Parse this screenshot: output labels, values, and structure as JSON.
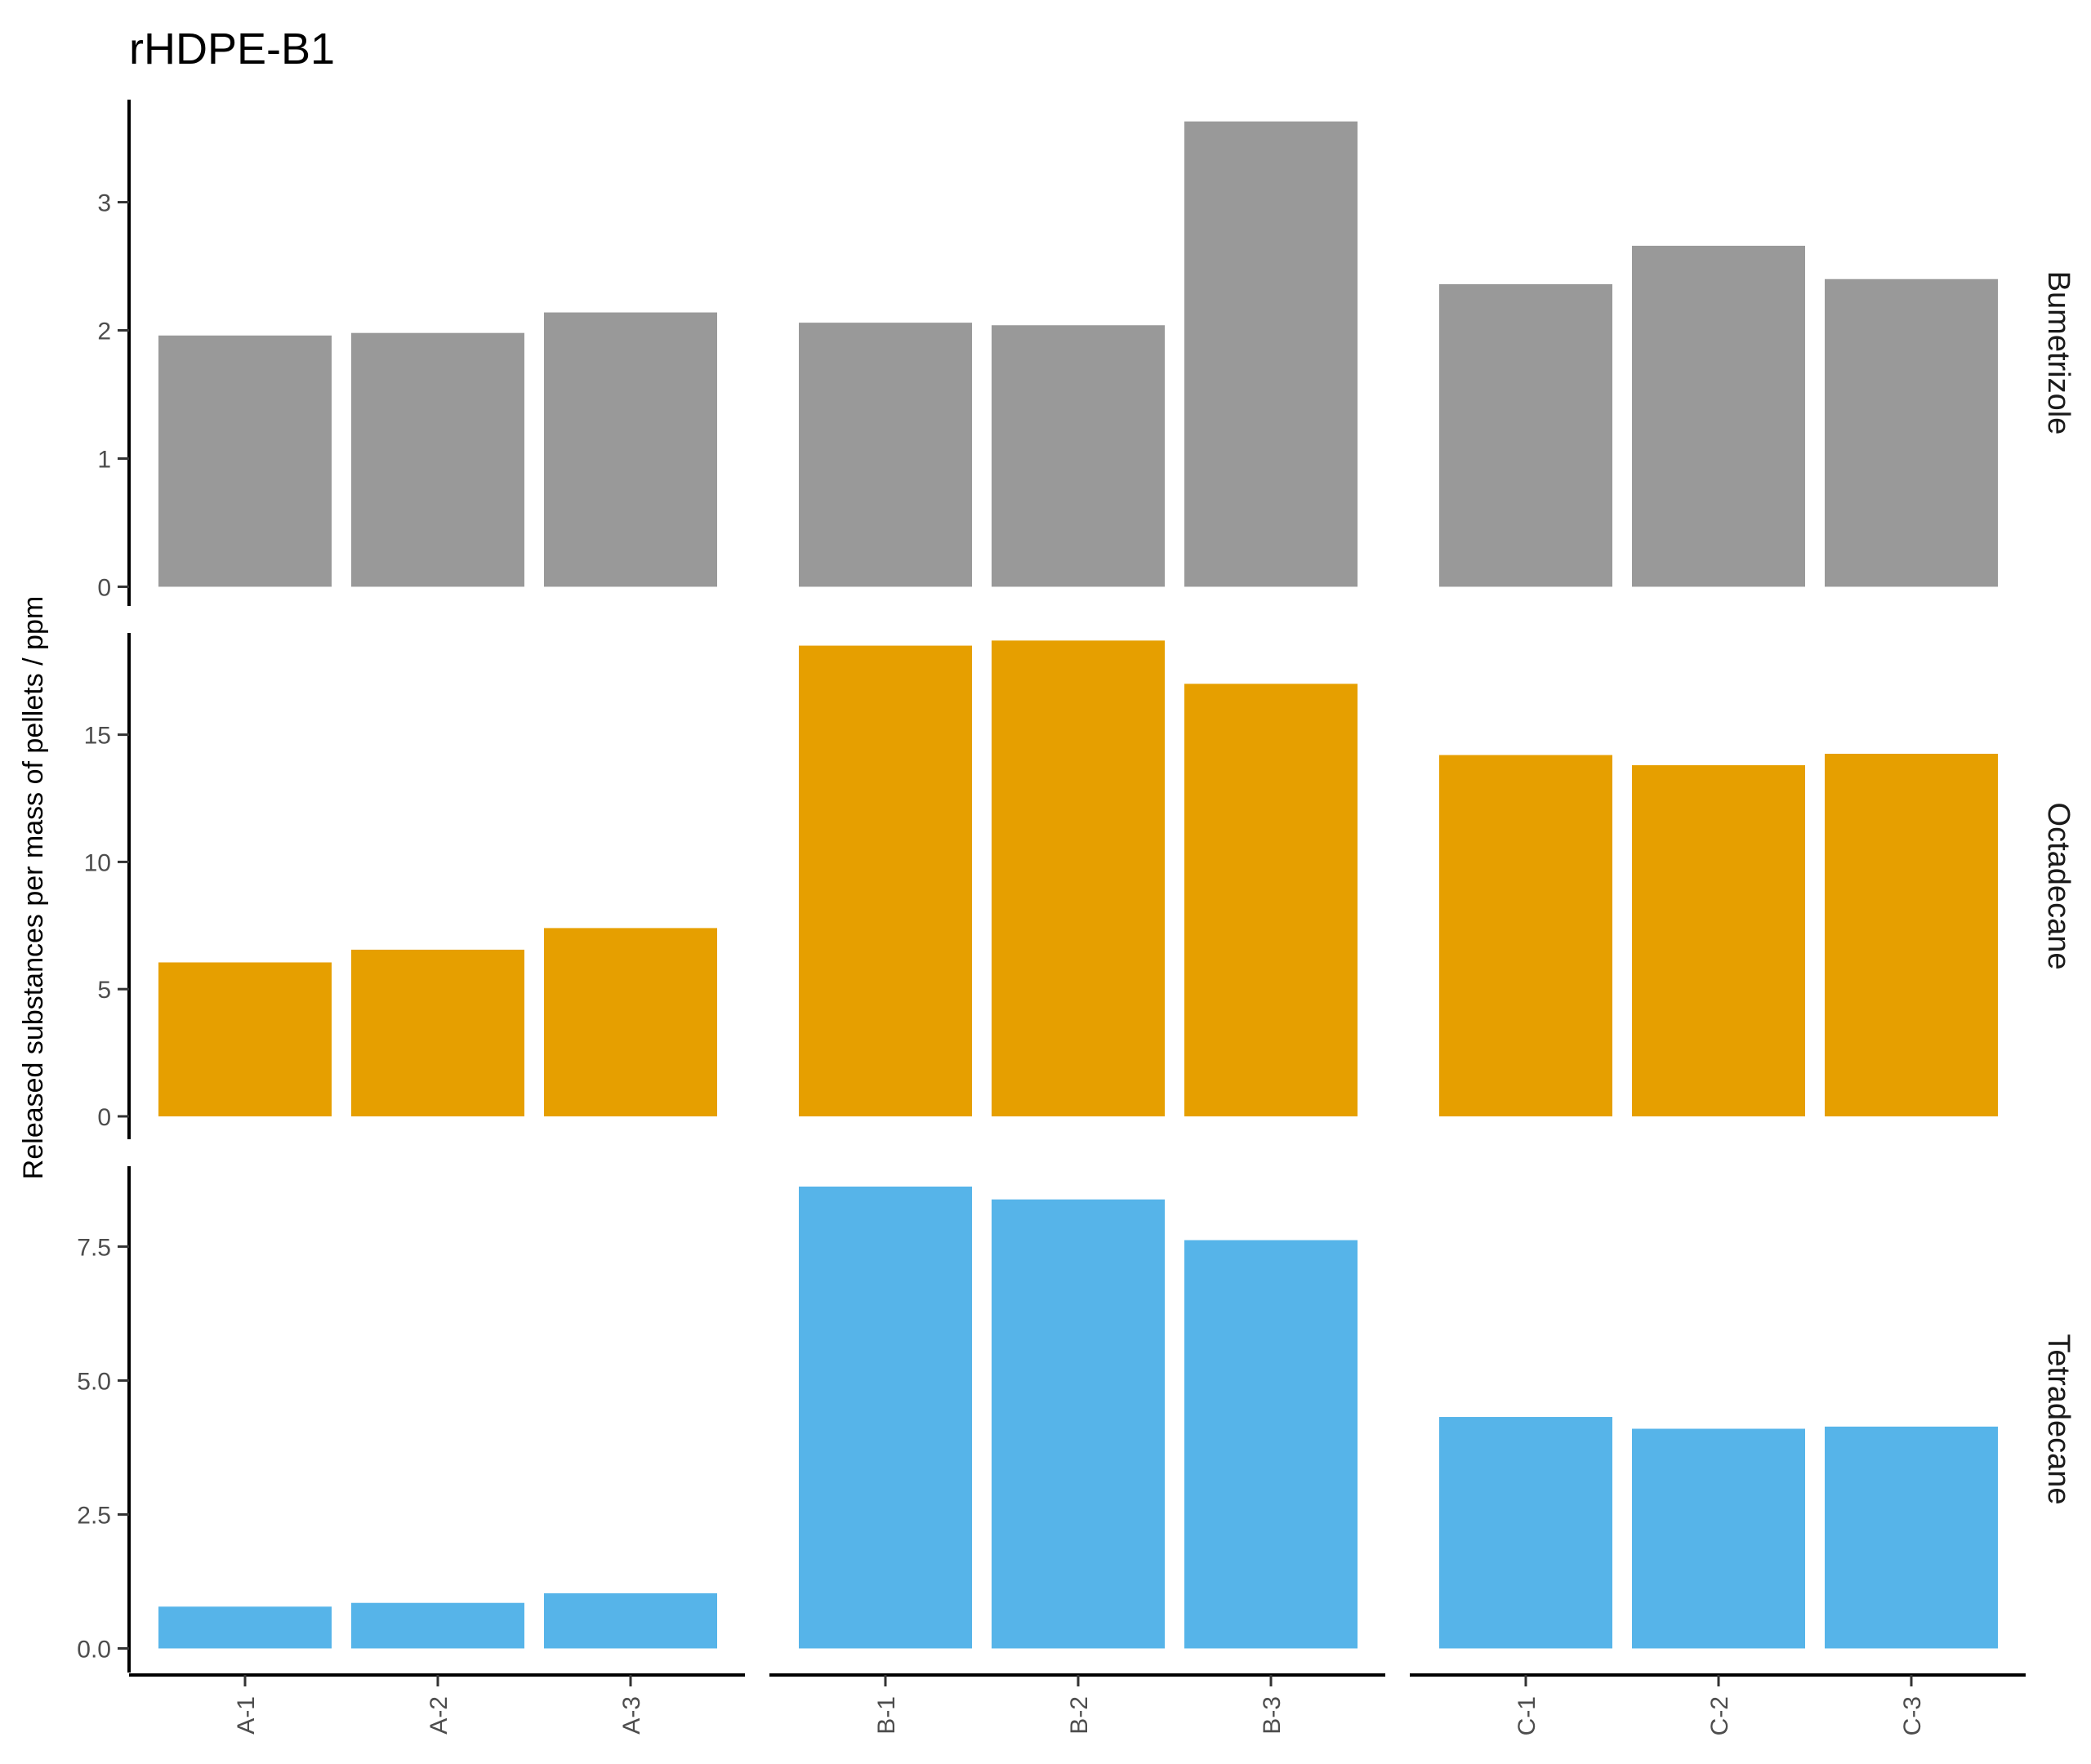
{
  "chart_data": {
    "type": "bar",
    "title": "rHDPE-B1",
    "ylabel": "Released substances per mass of pellets / ppm",
    "xlabel": "",
    "groups": [
      {
        "name": "A",
        "categories": [
          "A-1",
          "A-2",
          "A-3"
        ]
      },
      {
        "name": "B",
        "categories": [
          "B-1",
          "B-2",
          "B-3"
        ]
      },
      {
        "name": "C",
        "categories": [
          "C-1",
          "C-2",
          "C-3"
        ]
      }
    ],
    "facets": [
      {
        "name": "Bumetrizole",
        "color": "#999999",
        "ylim": [
          -0.15,
          3.8
        ],
        "ticks": [
          0,
          1,
          2,
          3
        ],
        "tick_labels": [
          "0",
          "1",
          "2",
          "3"
        ],
        "values": [
          1.96,
          1.98,
          2.14,
          2.06,
          2.04,
          3.63,
          2.36,
          2.66,
          2.4
        ]
      },
      {
        "name": "Octadecane",
        "color": "#E69F00",
        "ylim": [
          -0.9,
          19.0
        ],
        "ticks": [
          0,
          5,
          10,
          15
        ],
        "tick_labels": [
          "0",
          "5",
          "10",
          "15"
        ],
        "values": [
          6.05,
          6.55,
          7.4,
          18.5,
          18.7,
          17.0,
          14.2,
          13.8,
          14.25
        ]
      },
      {
        "name": "Tetradecane",
        "color": "#56B4E9",
        "ylim": [
          -0.45,
          9.0
        ],
        "ticks": [
          0.0,
          2.5,
          5.0,
          7.5
        ],
        "tick_labels": [
          "0.0",
          "2.5",
          "5.0",
          "7.5"
        ],
        "values": [
          0.78,
          0.85,
          1.03,
          8.62,
          8.38,
          7.62,
          4.32,
          4.1,
          4.14
        ]
      }
    ]
  }
}
